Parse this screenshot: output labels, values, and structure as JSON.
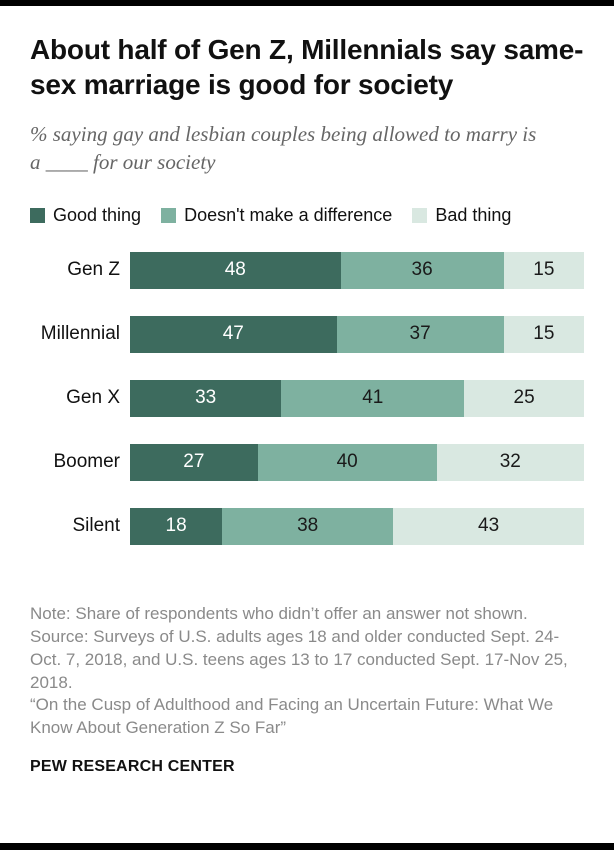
{
  "header": {
    "title": "About half of Gen Z, Millennials say same-sex marriage is good for society",
    "subtitle": "% saying gay and lesbian couples being allowed to marry is a ____ for our society"
  },
  "chart_data": {
    "type": "bar",
    "orientation": "horizontal",
    "stacked": true,
    "legend_position": "top",
    "xlim": [
      0,
      100
    ],
    "categories": [
      "Gen Z",
      "Millennial",
      "Gen X",
      "Boomer",
      "Silent"
    ],
    "series": [
      {
        "name": "Good thing",
        "color": "#3d6b5e",
        "value_color": "#ffffff",
        "values": [
          48,
          47,
          33,
          27,
          18
        ]
      },
      {
        "name": "Doesn't make a difference",
        "color": "#7eb1a0",
        "value_color": "#1a1a1a",
        "values": [
          36,
          37,
          41,
          40,
          38
        ]
      },
      {
        "name": "Bad thing",
        "color": "#d9e8e1",
        "value_color": "#1a1a1a",
        "values": [
          15,
          15,
          25,
          32,
          43
        ]
      }
    ]
  },
  "footer": {
    "note": "Note: Share of respondents who didn’t offer an answer not shown.",
    "source": "Source: Surveys of U.S. adults ages 18 and older conducted Sept. 24-Oct. 7, 2018, and U.S. teens ages 13 to 17 conducted Sept. 17-Nov 25, 2018.",
    "report_title": "“On the Cusp of Adulthood and Facing an Uncertain Future: What We Know About Generation Z So Far”",
    "brand": "PEW RESEARCH CENTER"
  }
}
